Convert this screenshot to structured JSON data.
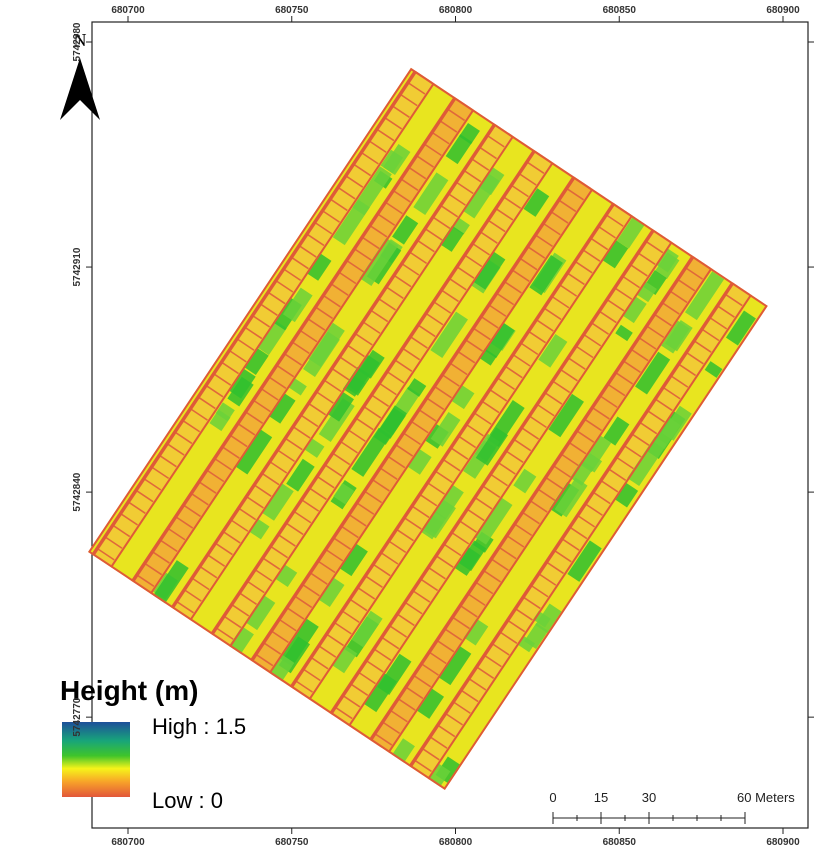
{
  "map": {
    "north_label": "N",
    "x_ticks": [
      680700,
      680750,
      680800,
      680850,
      680900
    ],
    "y_ticks": [
      5742980,
      5742910,
      5742840,
      5742770
    ],
    "legend": {
      "title": "Height (m)",
      "high_label": "High : 1.5",
      "low_label": "Low : 0"
    },
    "scale_bar": {
      "labels": [
        "0",
        "15",
        "30",
        "60 Meters"
      ]
    }
  }
}
